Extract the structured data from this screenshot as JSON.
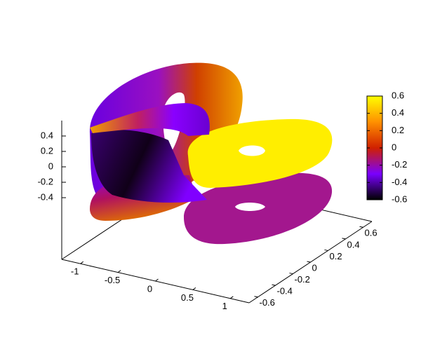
{
  "chart_data": {
    "type": "surface3d",
    "xlim": [
      -1.25,
      1.25
    ],
    "xticks": [
      -1,
      -0.5,
      0,
      0.5,
      1
    ],
    "ylim": [
      -0.7,
      0.7
    ],
    "yticks": [
      -0.6,
      -0.4,
      -0.2,
      0,
      0.2,
      0.4,
      0.6
    ],
    "zlim": [
      -1.2,
      0.6
    ],
    "zticks": [
      -0.4,
      -0.2,
      0,
      0.2,
      0.4
    ],
    "cblim": [
      -0.6,
      0.6
    ],
    "cbticks": [
      -0.6,
      -0.4,
      -0.2,
      0,
      0.2,
      0.4,
      0.6
    ],
    "colormap": [
      "#000000",
      "#7a00ff",
      "#d02000",
      "#ff9000",
      "#ffff00"
    ]
  }
}
